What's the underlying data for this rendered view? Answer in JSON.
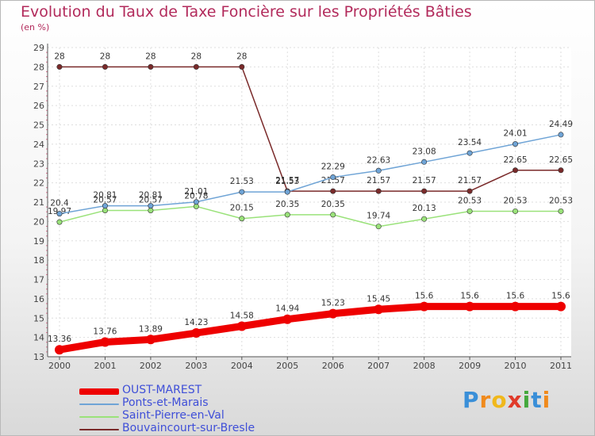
{
  "header": {
    "title": "Evolution du Taux de Taxe Foncière sur les Propriétés Bâties",
    "unit": "(en %)"
  },
  "logo": {
    "letters": [
      "P",
      "r",
      "o",
      "x",
      "i",
      "t",
      "i"
    ],
    "text": "Proxiti"
  },
  "chart_data": {
    "type": "line",
    "title": "Evolution du Taux de Taxe Foncière sur les Propriétés Bâties",
    "ylabel": "(en %)",
    "xlabel": "",
    "categories": [
      "2000",
      "2001",
      "2002",
      "2003",
      "2004",
      "2005",
      "2006",
      "2007",
      "2008",
      "2009",
      "2010",
      "2011"
    ],
    "ylim": [
      13,
      29
    ],
    "yticks": [
      "13",
      "14",
      "15",
      "16",
      "17",
      "18",
      "19",
      "20",
      "21",
      "22",
      "23",
      "24",
      "25",
      "26",
      "27",
      "28",
      "29"
    ],
    "grid": true,
    "series": [
      {
        "name": "OUST-MAREST",
        "color": "#ee0000",
        "values": [
          13.36,
          13.76,
          13.89,
          14.23,
          14.58,
          14.94,
          15.23,
          15.45,
          15.6,
          15.6,
          15.6,
          15.6
        ],
        "labels": [
          "13.36",
          "13.76",
          "13.89",
          "14.23",
          "14.58",
          "14.94",
          "15.23",
          "15.45",
          "15.6",
          "15.6",
          "15.6",
          "15.6"
        ]
      },
      {
        "name": "Ponts-et-Marais",
        "color": "#6fa4d6",
        "values": [
          20.4,
          20.81,
          20.81,
          21.01,
          21.53,
          21.53,
          22.29,
          22.63,
          23.08,
          23.54,
          24.01,
          24.49
        ],
        "labels": [
          "20.4",
          "20.81",
          "20.81",
          "21.01",
          "21.53",
          "21.53",
          "22.29",
          "22.63",
          "23.08",
          "23.54",
          "24.01",
          "24.49"
        ]
      },
      {
        "name": "Saint-Pierre-en-Val",
        "color": "#9ae27a",
        "values": [
          19.97,
          20.57,
          20.57,
          20.78,
          20.15,
          20.35,
          20.35,
          19.74,
          20.13,
          20.53,
          20.53,
          20.53
        ],
        "labels": [
          "19.97",
          "20.57",
          "20.57",
          "20.78",
          "20.15",
          "20.35",
          "20.35",
          "19.74",
          "20.13",
          "20.53",
          "20.53",
          "20.53"
        ]
      },
      {
        "name": "Bouvaincourt-sur-Bresle",
        "color": "#7a2a2a",
        "values": [
          28,
          28,
          28,
          28,
          28,
          21.57,
          21.57,
          21.57,
          21.57,
          21.57,
          22.65,
          22.65
        ],
        "labels": [
          "28",
          "28",
          "28",
          "28",
          "28",
          "21.57",
          "21.57",
          "21.57",
          "21.57",
          "21.57",
          "22.65",
          "22.65"
        ]
      }
    ]
  }
}
